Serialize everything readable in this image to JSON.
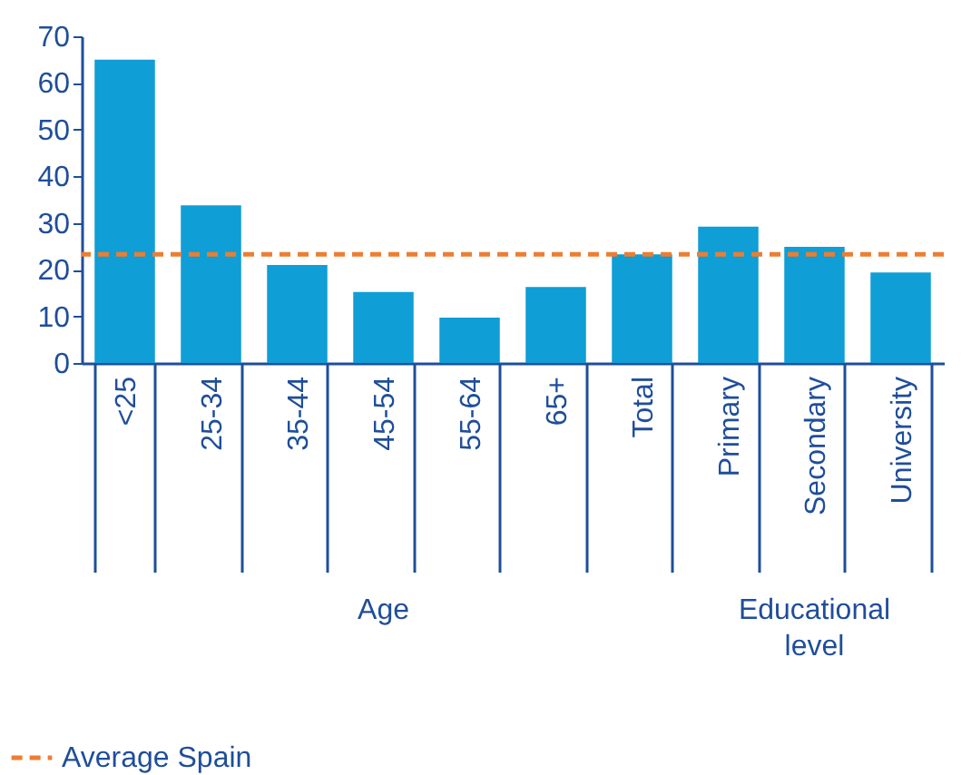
{
  "chart_data": {
    "type": "bar",
    "categories": [
      "<25",
      "25-34",
      "35-44",
      "45-54",
      "55-64",
      "65+",
      "Total",
      "Primary",
      "Secondary",
      "University"
    ],
    "values": [
      65,
      33.8,
      21,
      15.2,
      9.7,
      16.3,
      23.3,
      29.2,
      24.9,
      19.4
    ],
    "color": "#0f9ed5",
    "ylim": [
      0,
      70
    ],
    "yticks": [
      0,
      10,
      20,
      30,
      40,
      50,
      60,
      70
    ],
    "ref_lines": [
      {
        "axis": "y",
        "value": 23.3,
        "label": "Average Spain",
        "color": "#ed7d31",
        "line_style": "dashed"
      }
    ],
    "annotations": [
      "Age",
      "Educational level"
    ],
    "grid": false,
    "legend": "bottom left"
  }
}
